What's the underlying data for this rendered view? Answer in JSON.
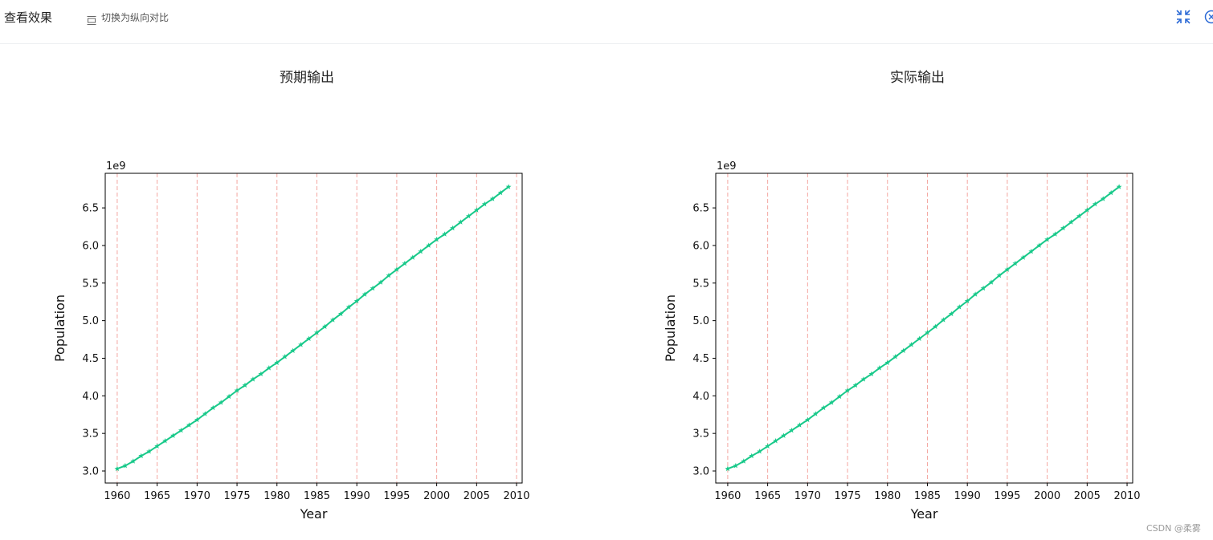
{
  "header": {
    "title": "查看效果",
    "toggle_label": "切换为纵向对比",
    "toggle_icon": "layout-rows-icon",
    "collapse_icon": "collapse-icon",
    "close_icon": "close-circle-icon",
    "accent_color": "#2d6bd6"
  },
  "panels": {
    "left_title": "预期输出",
    "right_title": "实际输出"
  },
  "watermark": "CSDN @柔雾",
  "chart_data": [
    {
      "type": "line",
      "title": "",
      "xlabel": "Year",
      "ylabel": "Population",
      "y_offset_label": "1e9",
      "xlim": [
        1958.5,
        2010.7
      ],
      "ylim": [
        2.84,
        6.96
      ],
      "xticks": [
        1960,
        1965,
        1970,
        1975,
        1980,
        1985,
        1990,
        1995,
        2000,
        2005,
        2010
      ],
      "yticks": [
        3.0,
        3.5,
        4.0,
        4.5,
        5.0,
        5.5,
        6.0,
        6.5
      ],
      "ytick_labels": [
        "3.0",
        "3.5",
        "4.0",
        "4.5",
        "5.0",
        "5.5",
        "6.0",
        "6.5"
      ],
      "grid": "vertical dashed",
      "grid_color": "#f4a6a0",
      "line_color": "#19c98a",
      "marker": "star",
      "x": [
        1960,
        1961,
        1962,
        1963,
        1964,
        1965,
        1966,
        1967,
        1968,
        1969,
        1970,
        1971,
        1972,
        1973,
        1974,
        1975,
        1976,
        1977,
        1978,
        1979,
        1980,
        1981,
        1982,
        1983,
        1984,
        1985,
        1986,
        1987,
        1988,
        1989,
        1990,
        1991,
        1992,
        1993,
        1994,
        1995,
        1996,
        1997,
        1998,
        1999,
        2000,
        2001,
        2002,
        2003,
        2004,
        2005,
        2006,
        2007,
        2008,
        2009
      ],
      "y": [
        3.03,
        3.07,
        3.13,
        3.2,
        3.26,
        3.33,
        3.4,
        3.47,
        3.54,
        3.61,
        3.68,
        3.76,
        3.84,
        3.91,
        3.99,
        4.07,
        4.14,
        4.22,
        4.29,
        4.37,
        4.44,
        4.52,
        4.6,
        4.68,
        4.76,
        4.84,
        4.92,
        5.01,
        5.09,
        5.18,
        5.26,
        5.35,
        5.43,
        5.51,
        5.6,
        5.68,
        5.76,
        5.84,
        5.92,
        6.0,
        6.08,
        6.15,
        6.23,
        6.31,
        6.39,
        6.47,
        6.55,
        6.62,
        6.7,
        6.78
      ]
    },
    {
      "type": "line",
      "title": "",
      "xlabel": "Year",
      "ylabel": "Population",
      "y_offset_label": "1e9",
      "xlim": [
        1958.5,
        2010.7
      ],
      "ylim": [
        2.84,
        6.96
      ],
      "xticks": [
        1960,
        1965,
        1970,
        1975,
        1980,
        1985,
        1990,
        1995,
        2000,
        2005,
        2010
      ],
      "yticks": [
        3.0,
        3.5,
        4.0,
        4.5,
        5.0,
        5.5,
        6.0,
        6.5
      ],
      "ytick_labels": [
        "3.0",
        "3.5",
        "4.0",
        "4.5",
        "5.0",
        "5.5",
        "6.0",
        "6.5"
      ],
      "grid": "vertical dashed",
      "grid_color": "#f4a6a0",
      "line_color": "#19c98a",
      "marker": "star",
      "x": [
        1960,
        1961,
        1962,
        1963,
        1964,
        1965,
        1966,
        1967,
        1968,
        1969,
        1970,
        1971,
        1972,
        1973,
        1974,
        1975,
        1976,
        1977,
        1978,
        1979,
        1980,
        1981,
        1982,
        1983,
        1984,
        1985,
        1986,
        1987,
        1988,
        1989,
        1990,
        1991,
        1992,
        1993,
        1994,
        1995,
        1996,
        1997,
        1998,
        1999,
        2000,
        2001,
        2002,
        2003,
        2004,
        2005,
        2006,
        2007,
        2008,
        2009
      ],
      "y": [
        3.03,
        3.07,
        3.13,
        3.2,
        3.26,
        3.33,
        3.4,
        3.47,
        3.54,
        3.61,
        3.68,
        3.76,
        3.84,
        3.91,
        3.99,
        4.07,
        4.14,
        4.22,
        4.29,
        4.37,
        4.44,
        4.52,
        4.6,
        4.68,
        4.76,
        4.84,
        4.92,
        5.01,
        5.09,
        5.18,
        5.26,
        5.35,
        5.43,
        5.51,
        5.6,
        5.68,
        5.76,
        5.84,
        5.92,
        6.0,
        6.08,
        6.15,
        6.23,
        6.31,
        6.39,
        6.47,
        6.55,
        6.62,
        6.7,
        6.78
      ]
    }
  ]
}
